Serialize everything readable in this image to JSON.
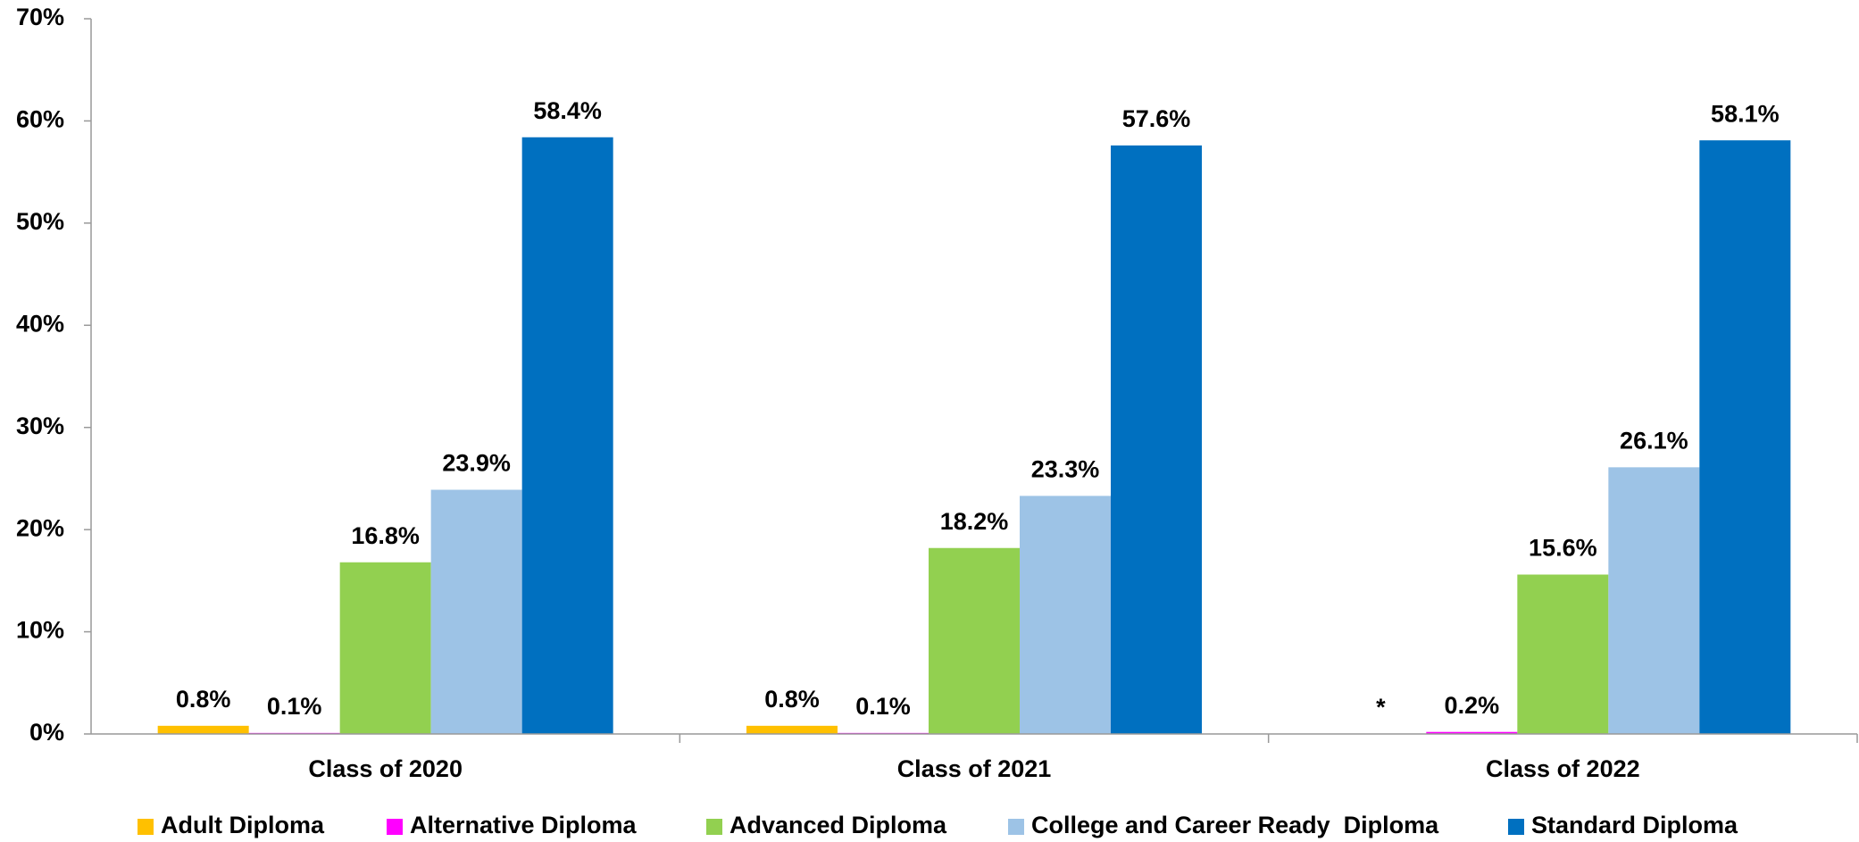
{
  "chart_data": {
    "type": "bar",
    "categories": [
      "Class of 2020",
      "Class of 2021",
      "Class of 2022"
    ],
    "series": [
      {
        "name": "Adult Diploma",
        "color": "#FFC000",
        "values": [
          0.8,
          0.8,
          null
        ],
        "value_labels": [
          "0.8%",
          "0.8%",
          "*"
        ]
      },
      {
        "name": "Alternative Diploma",
        "color": "#FF00FF",
        "values": [
          0.1,
          0.1,
          0.2
        ],
        "value_labels": [
          "0.1%",
          "0.1%",
          "0.2%"
        ]
      },
      {
        "name": "Advanced Diploma",
        "color": "#92D050",
        "values": [
          16.8,
          18.2,
          15.6
        ],
        "value_labels": [
          "16.8%",
          "18.2%",
          "15.6%"
        ]
      },
      {
        "name": "College and Career Ready  Diploma",
        "color": "#9DC3E6",
        "values": [
          23.9,
          23.3,
          26.1
        ],
        "value_labels": [
          "23.9%",
          "23.3%",
          "26.1%"
        ]
      },
      {
        "name": "Standard Diploma",
        "color": "#0070C0",
        "values": [
          58.4,
          57.6,
          58.1
        ],
        "value_labels": [
          "58.4%",
          "57.6%",
          "58.1%"
        ]
      }
    ],
    "ylim": [
      0,
      70
    ],
    "yticks": [
      {
        "value": 0,
        "label": "0%"
      },
      {
        "value": 10,
        "label": "10%"
      },
      {
        "value": 20,
        "label": "20%"
      },
      {
        "value": 30,
        "label": "30%"
      },
      {
        "value": 40,
        "label": "40%"
      },
      {
        "value": 50,
        "label": "50%"
      },
      {
        "value": 60,
        "label": "60%"
      },
      {
        "value": 70,
        "label": "70%"
      }
    ],
    "legend": "bottom"
  }
}
